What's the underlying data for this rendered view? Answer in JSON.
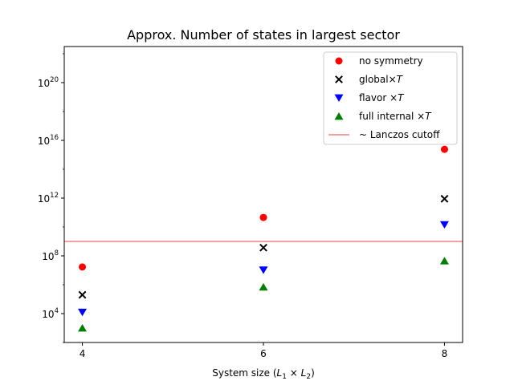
{
  "chart_data": {
    "type": "scatter",
    "title": "Approx. Number of states in largest sector",
    "xlabel": "System size (L₁ × L₂)",
    "ylabel": "",
    "x": [
      4,
      6,
      8
    ],
    "xticks": [
      "4",
      "6",
      "8"
    ],
    "xlim": [
      3.8,
      8.2
    ],
    "yscale": "log",
    "ylim_exp": [
      2.0,
      22.5
    ],
    "yticks": [
      {
        "exp": 4,
        "base": "10",
        "sup": "4"
      },
      {
        "exp": 8,
        "base": "10",
        "sup": "8"
      },
      {
        "exp": 12,
        "base": "10",
        "sup": "12"
      },
      {
        "exp": 16,
        "base": "10",
        "sup": "16"
      },
      {
        "exp": 20,
        "base": "10",
        "sup": "20"
      }
    ],
    "series": [
      {
        "name": "no symmetry",
        "marker": "circle",
        "color": "#ff0000",
        "values": [
          17000000.0,
          46000000000.0,
          2400000000000000.0
        ]
      },
      {
        "name": "global×T",
        "marker": "x",
        "color": "#000000",
        "values": [
          200000.0,
          370000000.0,
          900000000000.0
        ]
      },
      {
        "name": "flavor ×T",
        "marker": "triangle-down",
        "color": "#0000ff",
        "values": [
          12500.0,
          10500000.0,
          14500000000.0
        ]
      },
      {
        "name": "full internal ×T",
        "marker": "triangle-up",
        "color": "#008000",
        "values": [
          1000.0,
          700000.0,
          45000000.0
        ]
      }
    ],
    "reference_lines": [
      {
        "name": "~ Lanczos cutoff",
        "orientation": "horizontal",
        "value": 1000000000.0,
        "color": "#f08080"
      }
    ],
    "legend_position": "top-right",
    "grid": false
  }
}
